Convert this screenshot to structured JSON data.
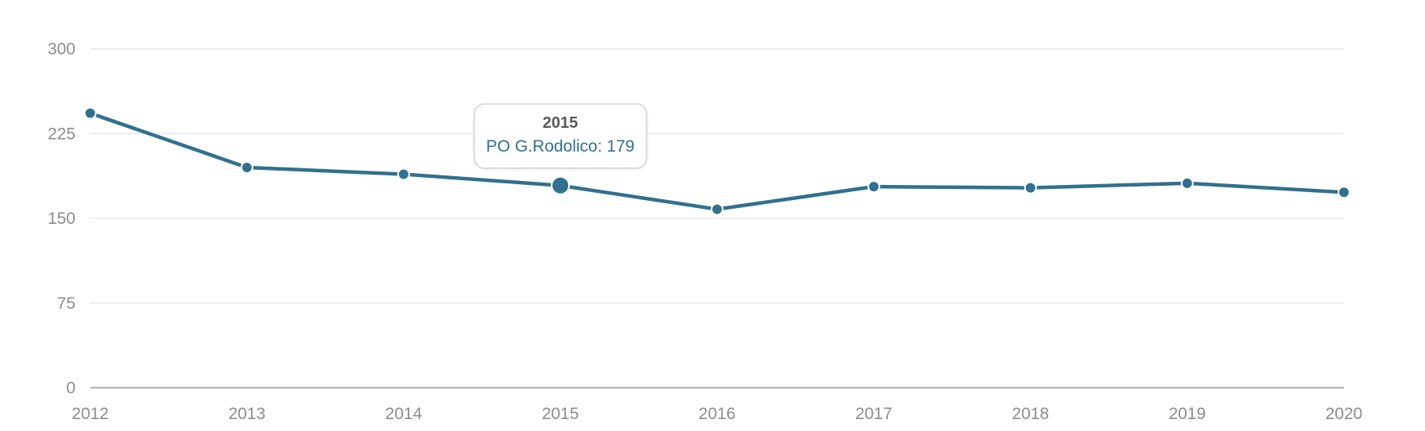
{
  "colors": {
    "background": "#ffffff",
    "series": "#31708f",
    "grid": "#e7e7e7",
    "axis_line": "#ababab",
    "tick_label": "#8c8c8c",
    "marker_ring": "#ffffff",
    "tooltip_bg": "#ffffff",
    "tooltip_border": "#dbdbdb",
    "tooltip_title": "#58595b",
    "tooltip_text": "#31708f"
  },
  "chart_data": {
    "type": "line",
    "title": "",
    "xlabel": "",
    "ylabel": "",
    "x": [
      2012,
      2013,
      2014,
      2015,
      2016,
      2017,
      2018,
      2019,
      2020
    ],
    "series": [
      {
        "name": "PO G.Rodolico",
        "values": [
          243,
          195,
          189,
          179,
          158,
          178,
          177,
          181,
          173
        ],
        "color": "#31708f"
      }
    ],
    "yticks": [
      0,
      75,
      150,
      225,
      300
    ],
    "ylim": [
      0,
      300
    ],
    "grid": "horizontal-only",
    "legend": "none",
    "hover_index": 3
  },
  "tooltip": {
    "title": "2015",
    "series": "PO G.Rodolico",
    "value": 179,
    "text": "PO G.Rodolico: 179"
  }
}
